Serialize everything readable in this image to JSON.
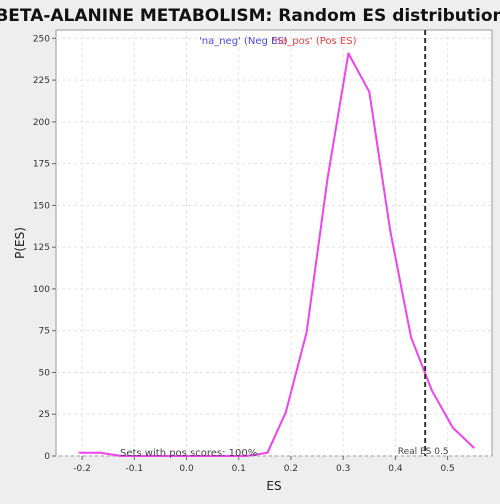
{
  "chart_data": {
    "type": "line",
    "title": "BETA-ALANINE METABOLISM: Random ES distribution",
    "xlabel": "ES",
    "ylabel": "P(ES)",
    "xlim": [
      -0.25,
      0.585
    ],
    "ylim": [
      0,
      255
    ],
    "x_ticks": [
      -0.2,
      -0.1,
      0.0,
      0.1,
      0.2,
      0.3,
      0.4,
      0.5
    ],
    "x_tick_labels": [
      "-0.2",
      "-0.1",
      "0.0",
      "0.1",
      "0.2",
      "0.3",
      "0.4",
      "0.5"
    ],
    "y_ticks": [
      0,
      25,
      50,
      75,
      100,
      125,
      150,
      175,
      200,
      225,
      250
    ],
    "y_tick_labels": [
      "0",
      "25",
      "50",
      "75",
      "100",
      "125",
      "150",
      "175",
      "200",
      "225",
      "250"
    ],
    "grid": true,
    "legend": [
      {
        "label": "'na_neg' (Neg ES)",
        "color": "#4a4adf"
      },
      {
        "label": "'na_pos' (Pos ES)",
        "color": "#e8403f"
      }
    ],
    "series": [
      {
        "color": "#ee44ee",
        "x": [
          -0.205,
          -0.165,
          -0.125,
          -0.085,
          -0.045,
          -0.005,
          0.035,
          0.075,
          0.115,
          0.155,
          0.19,
          0.23,
          0.27,
          0.31,
          0.35,
          0.39,
          0.43,
          0.47,
          0.51,
          0.55
        ],
        "y": [
          2,
          2,
          0,
          0,
          0,
          0,
          0,
          0,
          0,
          2,
          26,
          74,
          166,
          241,
          218,
          135,
          71,
          39,
          17,
          5
        ]
      }
    ],
    "real_es": {
      "x": 0.457,
      "label": "Real ES 0.5"
    },
    "footnote": "Sets with pos scores: 100%"
  }
}
